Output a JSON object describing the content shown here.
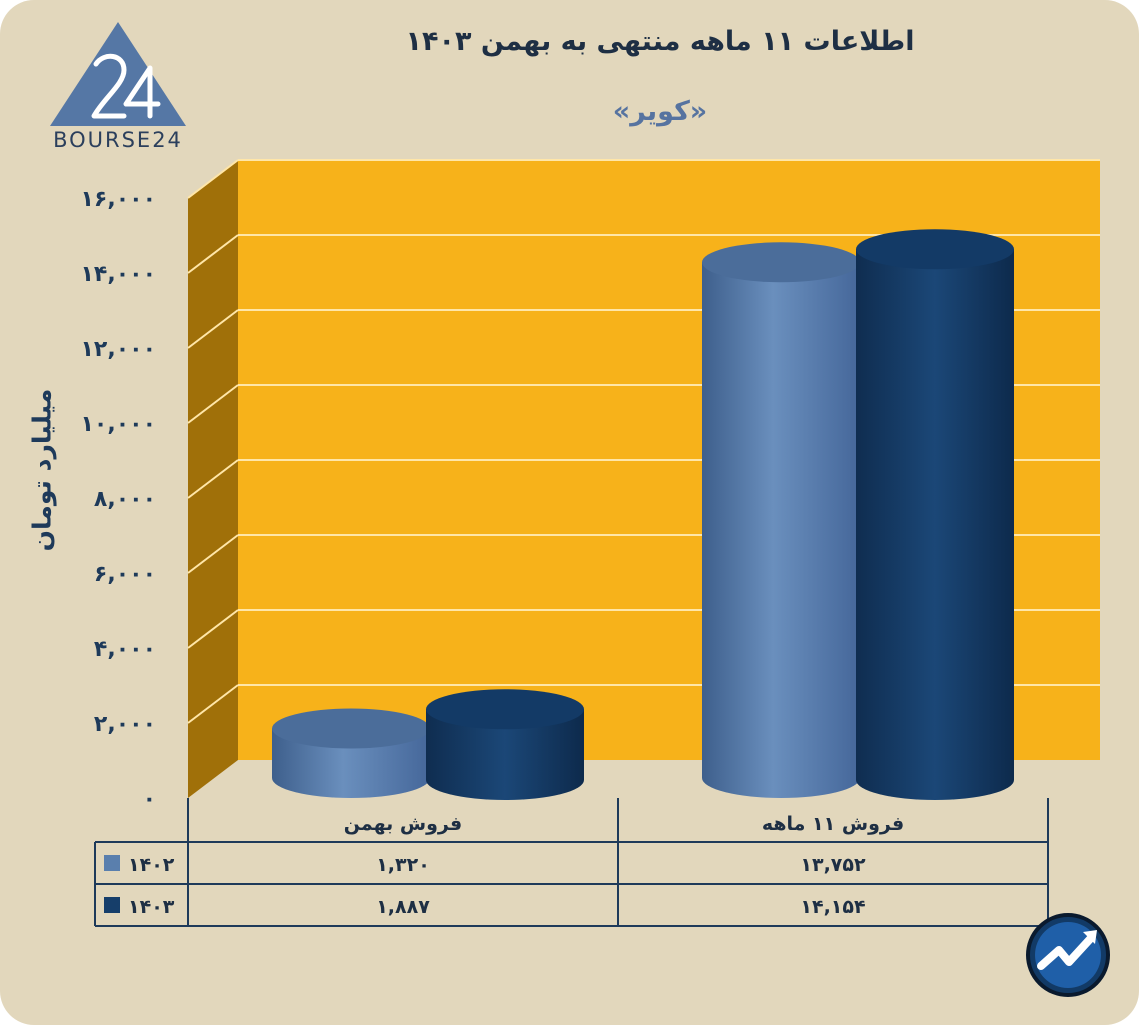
{
  "header": {
    "title": "اطلاعات ۱۱ ماهه منتهی به بهمن ۱۴۰۳",
    "subtitle": "«کویر»",
    "logo_text": "BOURSE24"
  },
  "colors": {
    "background": "#e2d7bc",
    "plot_back": "#f7b21a",
    "plot_side": "#a07009",
    "series_1402": "#5a7fad",
    "series_1403": "#163e6a",
    "text": "#1e3a5a"
  },
  "chart_data": {
    "type": "bar",
    "ylabel": "میلیارد تومان",
    "ylim": [
      0,
      16000
    ],
    "yticks": [
      0,
      2000,
      4000,
      6000,
      8000,
      10000,
      12000,
      14000,
      16000
    ],
    "ytick_labels": [
      "۰",
      "۲,۰۰۰",
      "۴,۰۰۰",
      "۶,۰۰۰",
      "۸,۰۰۰",
      "۱۰,۰۰۰",
      "۱۲,۰۰۰",
      "۱۴,۰۰۰",
      "۱۶,۰۰۰"
    ],
    "categories": [
      "فروش بهمن",
      "فروش ۱۱ ماهه"
    ],
    "series": [
      {
        "name": "۱۴۰۲",
        "values": [
          1320,
          13752
        ],
        "labels": [
          "۱,۳۲۰",
          "۱۳,۷۵۲"
        ]
      },
      {
        "name": "۱۴۰۳",
        "values": [
          1887,
          14154
        ],
        "labels": [
          "۱,۸۸۷",
          "۱۴,۱۵۴"
        ]
      }
    ],
    "grid": true,
    "legend": "data-table"
  }
}
